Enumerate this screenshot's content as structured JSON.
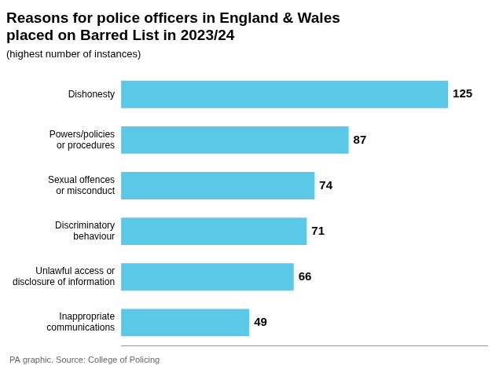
{
  "chart_data": {
    "type": "bar",
    "orientation": "horizontal",
    "title": "Reasons for police officers in England & Wales\nplaced on Barred List in 2023/24",
    "subtitle": "(highest number of instances)",
    "annotations": [
      "PA graphic. Source: College of Policing"
    ],
    "categories": [
      "Inappropriate\ncommunications",
      "Unlawful access or\ndisclosure of information",
      "Discriminatory\nbehaviour",
      "Sexual offences\nor misconduct",
      "Powers/policies\nor procedures",
      "Dishonesty"
    ],
    "values": [
      49,
      66,
      71,
      74,
      87,
      125
    ],
    "color": "#5bc8e8",
    "xlim": [
      0,
      140
    ],
    "data_labels": true,
    "tick_labels": "y",
    "grid": false,
    "legend": "none"
  }
}
